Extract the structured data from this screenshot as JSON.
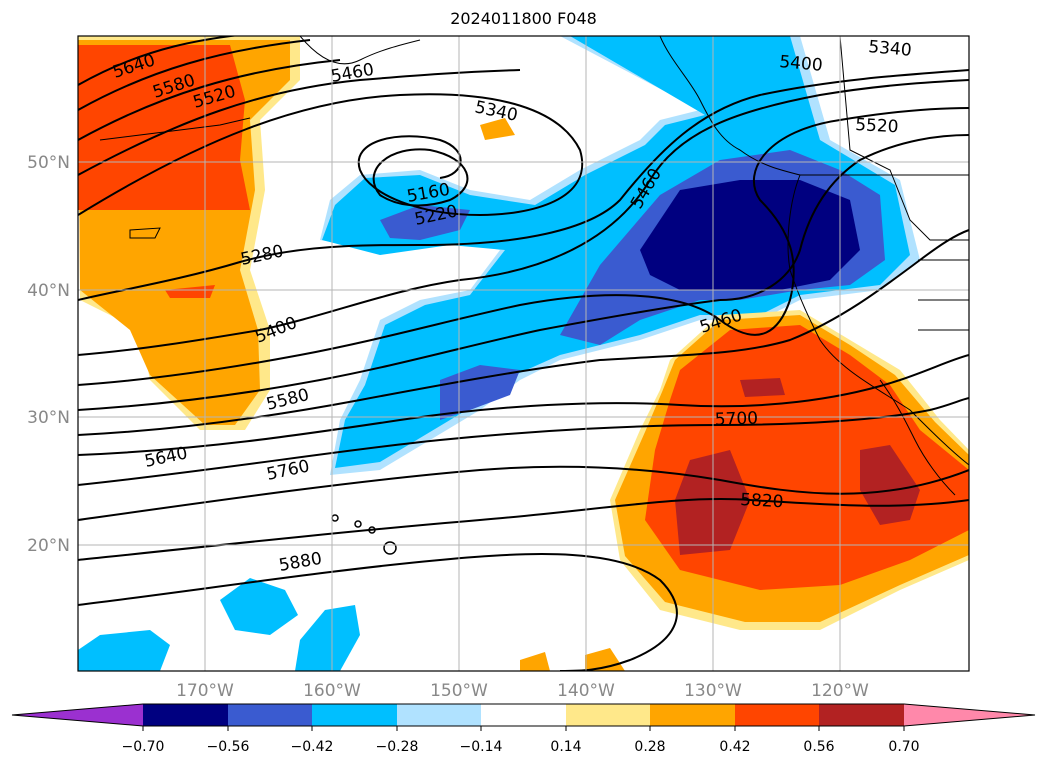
{
  "title": "2024011800 F048",
  "lat_labels": [
    "50°N",
    "40°N",
    "30°N",
    "20°N"
  ],
  "lon_labels": [
    "170°W",
    "160°W",
    "150°W",
    "140°W",
    "130°W",
    "120°W"
  ],
  "contour_labels": [
    "5640",
    "5580",
    "5520",
    "5460",
    "5340",
    "5400",
    "5340",
    "5520",
    "5160",
    "5220",
    "5460",
    "5280",
    "5400",
    "5460",
    "5580",
    "5700",
    "5640",
    "5760",
    "5820",
    "5880"
  ],
  "colorbar": {
    "tick_labels": [
      "−0.70",
      "−0.56",
      "−0.42",
      "−0.28",
      "−0.14",
      "0.14",
      "0.28",
      "0.42",
      "0.56",
      "0.70"
    ],
    "colors": [
      "#9b30d0",
      "#000080",
      "#3a5bd0",
      "#00bfff",
      "#b0e2ff",
      "#ffffff",
      "#ffe88a",
      "#ffa500",
      "#ff4500",
      "#b22222",
      "#ff88aa"
    ]
  }
}
